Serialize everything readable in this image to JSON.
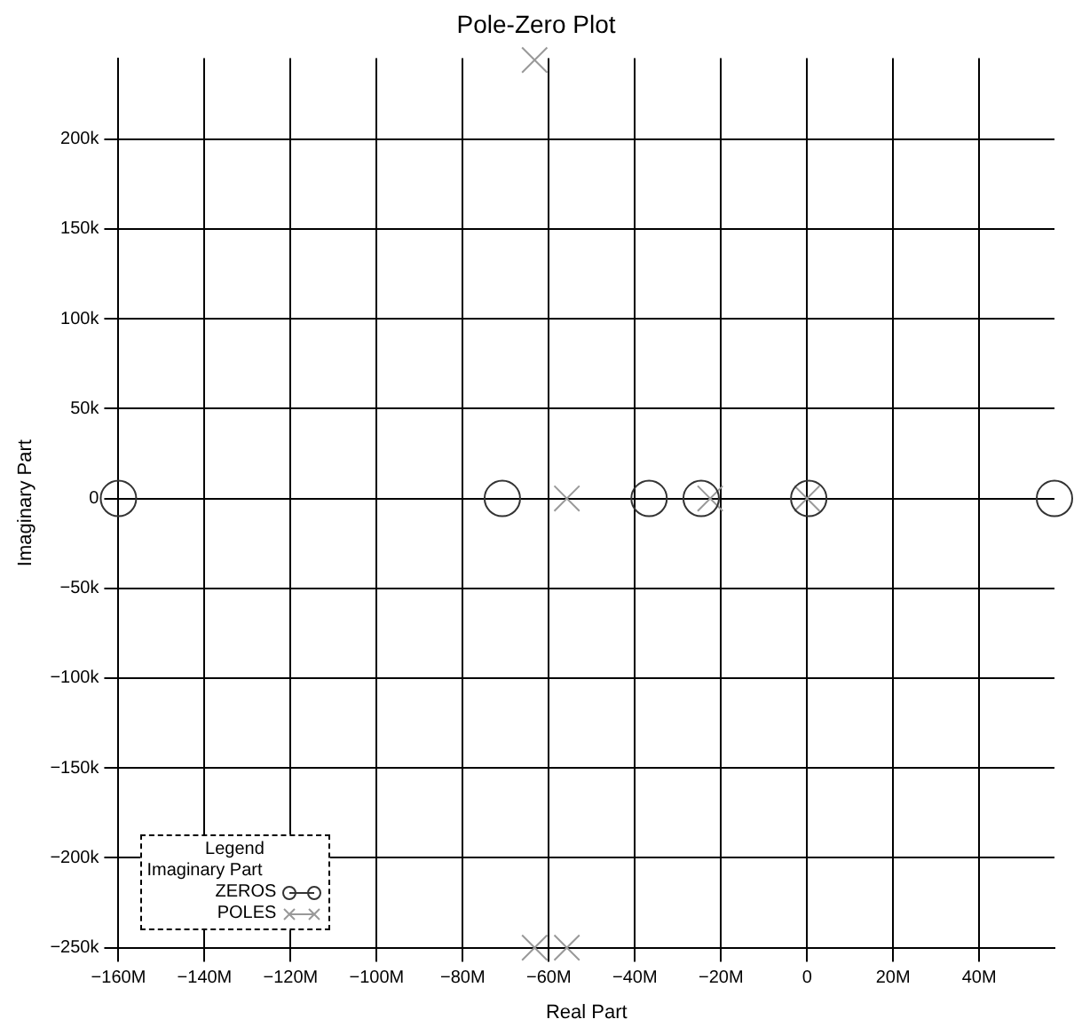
{
  "chart_data": {
    "type": "scatter",
    "title": "Pole-Zero Plot",
    "xlabel": "Real Part",
    "ylabel": "Imaginary Part",
    "xlim": [
      -160000000,
      57500000
    ],
    "ylim": [
      -250000,
      245000
    ],
    "xticks": [
      {
        "value": -160000000,
        "label": "−160M"
      },
      {
        "value": -140000000,
        "label": "−140M"
      },
      {
        "value": -120000000,
        "label": "−120M"
      },
      {
        "value": -100000000,
        "label": "−100M"
      },
      {
        "value": -80000000,
        "label": "−80M"
      },
      {
        "value": -60000000,
        "label": "−60M"
      },
      {
        "value": -40000000,
        "label": "−40M"
      },
      {
        "value": -20000000,
        "label": "−20M"
      },
      {
        "value": 0,
        "label": "0"
      },
      {
        "value": 20000000,
        "label": "20M"
      },
      {
        "value": 40000000,
        "label": "40M"
      }
    ],
    "yticks": [
      {
        "value": -250000,
        "label": "−250k"
      },
      {
        "value": -200000,
        "label": "−200k"
      },
      {
        "value": -150000,
        "label": "−150k"
      },
      {
        "value": -100000,
        "label": "−100k"
      },
      {
        "value": -50000,
        "label": "−50k"
      },
      {
        "value": 0,
        "label": "0"
      },
      {
        "value": 50000,
        "label": "50k"
      },
      {
        "value": 100000,
        "label": "100k"
      },
      {
        "value": 150000,
        "label": "150k"
      },
      {
        "value": 200000,
        "label": "200k"
      }
    ],
    "grid": true,
    "legend": "bottom left",
    "legend_title": "Legend",
    "annotations": [
      "Imaginary Part"
    ],
    "series": [
      {
        "name": "ZEROS",
        "color": "#333333",
        "marker": "circle",
        "x": [
          -160000000,
          -70800000,
          -36700000,
          -24600000,
          400000,
          57500000
        ],
        "values": [
          0,
          0,
          0,
          0,
          0,
          0
        ]
      },
      {
        "name": "POLES",
        "color": "#999999",
        "marker": "cross",
        "x": [
          -55800000,
          -22500000,
          0,
          -63300000,
          -63300000,
          -55800000
        ],
        "values": [
          0,
          0,
          0,
          244000,
          -250000,
          -250000
        ]
      }
    ]
  }
}
